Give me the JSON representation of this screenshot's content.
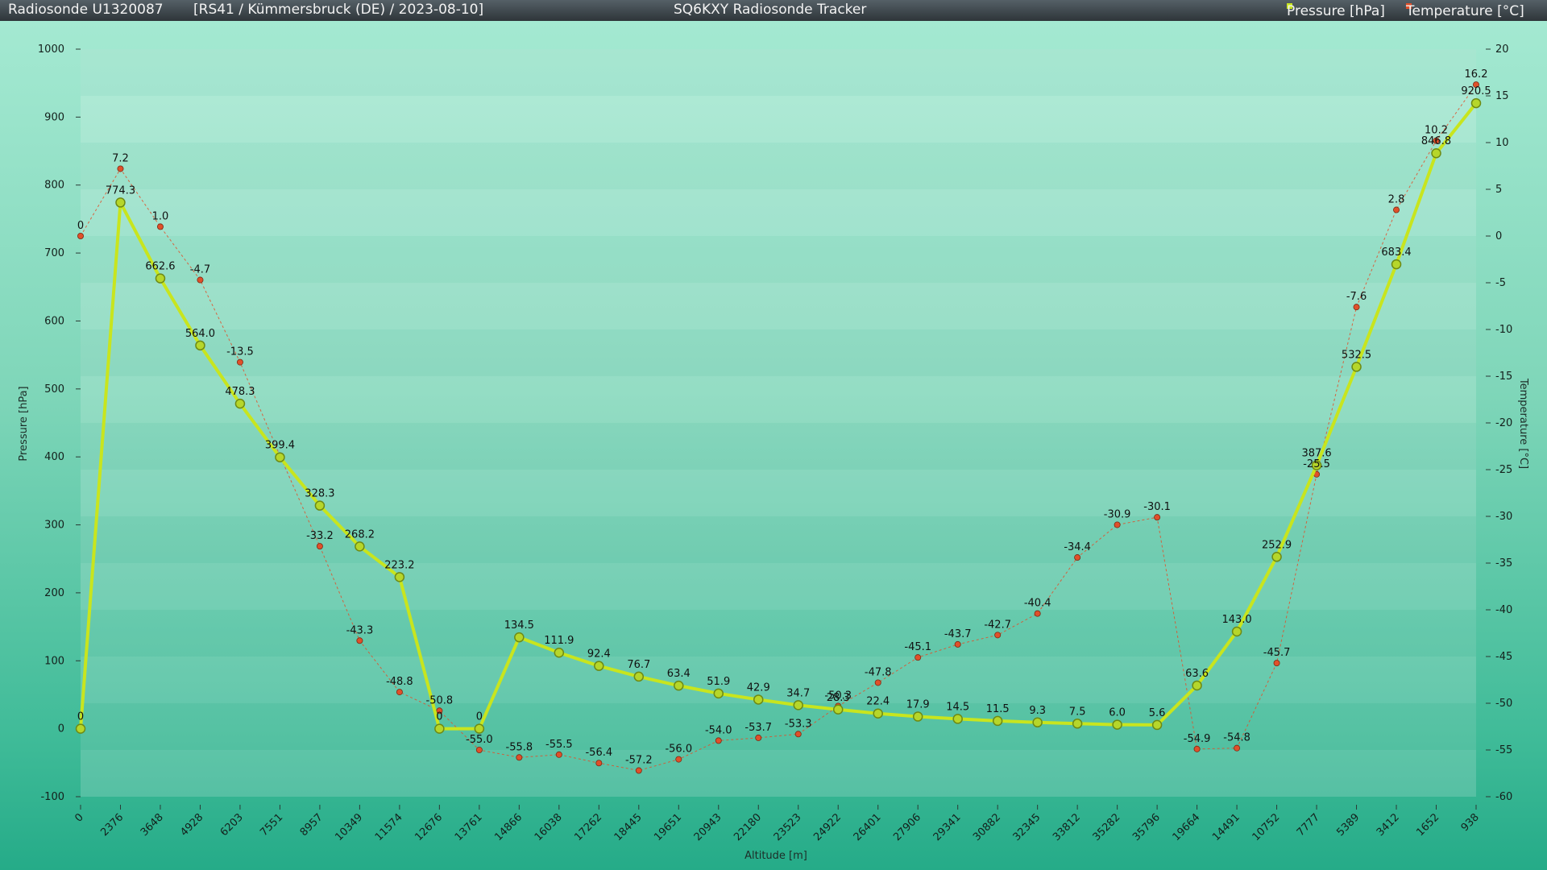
{
  "header": {
    "left_title": "Radiosonde U1320087",
    "left_info": "[RS41 / Kümmersbruck (DE) / 2023-08-10]",
    "center_title": "SQ6KXY Radiosonde Tracker",
    "legend": [
      {
        "label": "Pressure [hPa]",
        "color": "#c8e51e"
      },
      {
        "label": "Temperature [°C]",
        "color": "#e0502a"
      }
    ]
  },
  "chart_data": {
    "type": "line",
    "xlabel": "Altitude [m]",
    "ylabel_left": "Pressure [hPa]",
    "ylabel_right": "Temperature [°C]",
    "categories": [
      "0",
      "2376",
      "3648",
      "4928",
      "6203",
      "7551",
      "8957",
      "10349",
      "11574",
      "12676",
      "13761",
      "14866",
      "16038",
      "17262",
      "18445",
      "19651",
      "20943",
      "22180",
      "23523",
      "24922",
      "26401",
      "27906",
      "29341",
      "30882",
      "32345",
      "33812",
      "35282",
      "35796",
      "19664",
      "14491",
      "10752",
      "7777",
      "5389",
      "3412",
      "1652",
      "938"
    ],
    "y_left_range": [
      -100,
      1000
    ],
    "y_left_ticks": [
      "-100",
      "0",
      "100",
      "200",
      "300",
      "400",
      "500",
      "600",
      "700",
      "800",
      "900",
      "1000"
    ],
    "y_right_range": [
      -60,
      20
    ],
    "y_right_ticks": [
      "-60",
      "-55",
      "-50",
      "-45",
      "-40",
      "-35",
      "-30",
      "-25",
      "-20",
      "-15",
      "-10",
      "-5",
      "0",
      "5",
      "10",
      "15",
      "20"
    ],
    "grid": true,
    "legend_position": "top-right",
    "series": [
      {
        "name": "Pressure [hPa]",
        "axis": "left",
        "color": "#c8e51e",
        "values": [
          0,
          774.3,
          662.6,
          564.0,
          478.3,
          399.4,
          328.3,
          268.2,
          223.2,
          0,
          0,
          134.5,
          111.9,
          92.4,
          76.7,
          63.4,
          51.9,
          42.9,
          34.7,
          28.3,
          22.4,
          17.9,
          14.5,
          11.5,
          9.3,
          7.5,
          6.0,
          5.6,
          63.6,
          143.0,
          252.9,
          387.6,
          532.5,
          683.4,
          846.8,
          920.5
        ],
        "labels": [
          "0",
          "774.3",
          "662.6",
          "564.0",
          "478.3",
          "399.4",
          "328.3",
          "268.2",
          "223.2",
          "0",
          "0",
          "134.5",
          "111.9",
          "92.4",
          "76.7",
          "63.4",
          "51.9",
          "42.9",
          "34.7",
          "28.3",
          "22.4",
          "17.9",
          "14.5",
          "11.5",
          "9.3",
          "7.5",
          "6.0",
          "5.6",
          "63.6",
          "143.0",
          "252.9",
          "387.6",
          "532.5",
          "683.4",
          "846.8",
          "920.5"
        ]
      },
      {
        "name": "Temperature [°C]",
        "axis": "right",
        "color": "#e0502a",
        "values": [
          0,
          7.2,
          1.0,
          -4.7,
          -13.5,
          -23.5,
          -33.2,
          -43.3,
          -48.8,
          -50.8,
          -55.0,
          -55.8,
          -55.5,
          -56.4,
          -57.2,
          -56.0,
          -54.0,
          -53.7,
          -53.3,
          -50.3,
          -47.8,
          -45.1,
          -43.7,
          -42.7,
          -40.4,
          -34.4,
          -30.9,
          -30.1,
          -54.9,
          -54.8,
          -45.7,
          -25.5,
          -7.6,
          2.8,
          10.2,
          16.2
        ],
        "labels": [
          "0",
          "7.2",
          "1.0",
          "-4.7",
          "-13.5",
          "",
          "-33.2",
          "-43.3",
          "-48.8",
          "-50.8",
          "-55.0",
          "-55.8",
          "-55.5",
          "-56.4",
          "-57.2",
          "-56.0",
          "-54.0",
          "-53.7",
          "-53.3",
          "-50.3",
          "-47.8",
          "-45.1",
          "-43.7",
          "-42.7",
          "-40.4",
          "-34.4",
          "-30.9",
          "-30.1",
          "-54.9",
          "-54.8",
          "-45.7",
          "-25.5",
          "-7.6",
          "2.8",
          "10.2",
          "16.2"
        ]
      }
    ]
  }
}
